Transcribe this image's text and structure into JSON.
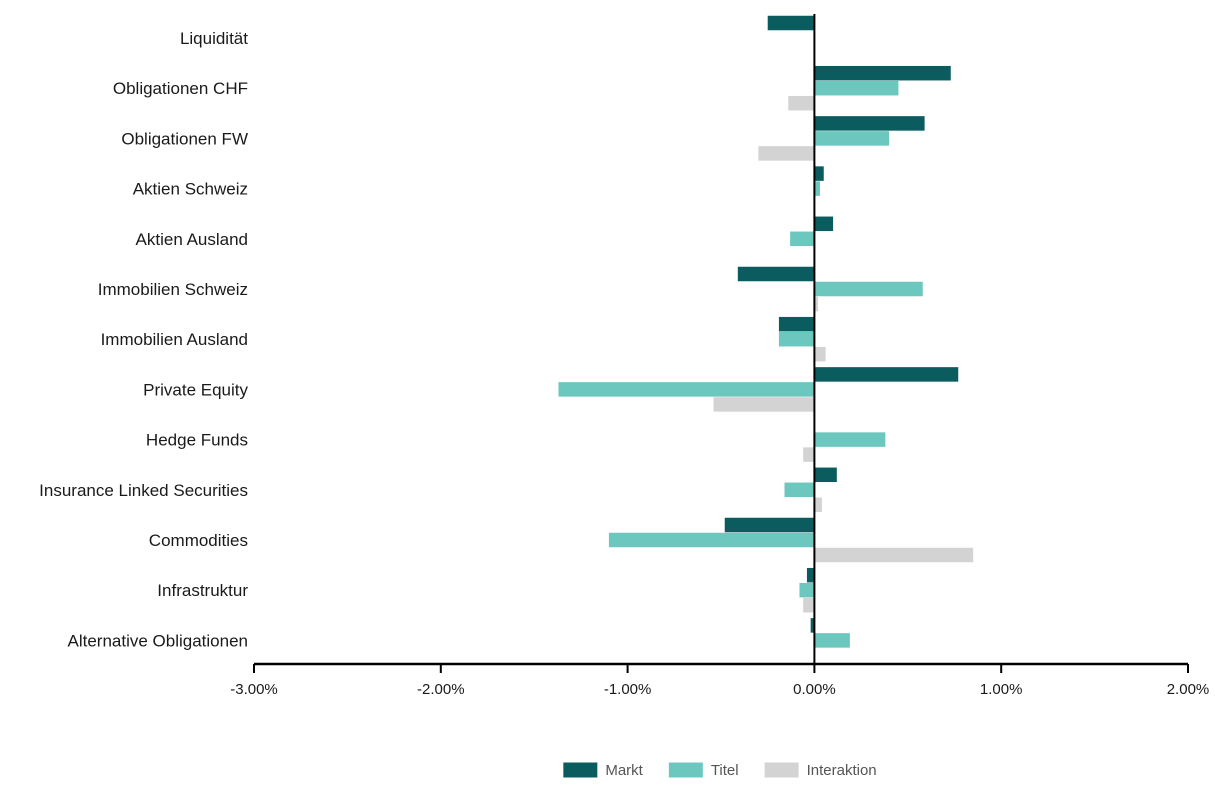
{
  "chart_data": {
    "type": "bar",
    "orientation": "horizontal",
    "categories": [
      "Liquidität",
      "Obligationen CHF",
      "Obligationen FW",
      "Aktien Schweiz",
      "Aktien Ausland",
      "Immobilien Schweiz",
      "Immobilien Ausland",
      "Private Equity",
      "Hedge Funds",
      "Insurance Linked Securities",
      "Commodities",
      "Infrastruktur",
      "Alternative Obligationen"
    ],
    "series": [
      {
        "name": "Markt",
        "color": "#0b5c5e",
        "values": [
          -0.25,
          0.73,
          0.59,
          0.05,
          0.1,
          -0.41,
          -0.19,
          0.77,
          0.0,
          0.12,
          -0.48,
          -0.04,
          -0.02
        ]
      },
      {
        "name": "Titel",
        "color": "#6cc7bf",
        "values": [
          0.0,
          0.45,
          0.4,
          0.03,
          -0.13,
          0.58,
          -0.19,
          -1.37,
          0.38,
          -0.16,
          -1.1,
          -0.08,
          0.19
        ]
      },
      {
        "name": "Interaktion",
        "color": "#d3d3d3",
        "values": [
          0.0,
          -0.14,
          -0.3,
          0.0,
          0.0,
          0.02,
          0.06,
          -0.54,
          -0.06,
          0.04,
          0.85,
          -0.06,
          0.0
        ]
      }
    ],
    "xlim": [
      -3.0,
      2.0
    ],
    "xticks": [
      -3.0,
      -2.0,
      -1.0,
      0.0,
      1.0,
      2.0
    ],
    "xtick_labels": [
      "-3.00%",
      "-2.00%",
      "-1.00%",
      "0.00%",
      "1.00%",
      "2.00%"
    ],
    "title": "",
    "xlabel": "",
    "ylabel": "",
    "grid": false,
    "legend_position": "bottom-center"
  }
}
